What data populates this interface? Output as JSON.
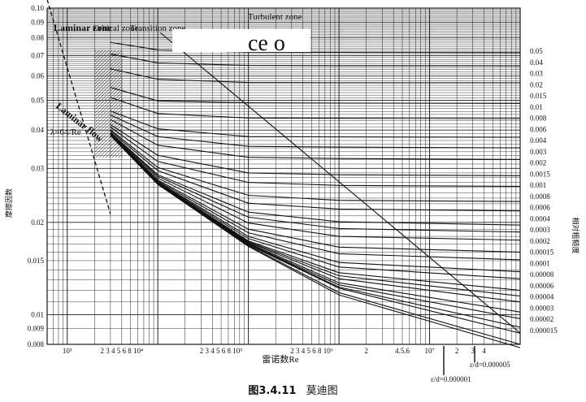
{
  "figure_caption": {
    "number": "图3.4.11",
    "title": "莫迪图"
  },
  "chart_data": {
    "type": "line",
    "title": "",
    "xlabel": "雷诺数Re",
    "ylabel": "摩擦因数",
    "y2label": "相对粗糙度",
    "x_scale": "log",
    "y_scale": "log",
    "xlim": [
      600,
      100000000
    ],
    "ylim": [
      0.008,
      0.1
    ],
    "grid": true,
    "legend": "none",
    "zone_labels": {
      "laminar_zone": "Laminar zone",
      "critical_zone": "Critical zone",
      "transition_zone": "Transition zone",
      "turbulent_zone": "Turbulent zone",
      "laminar_flow": "Laminar flow",
      "laminar_eq": "λ=64/Re",
      "overprint": "ce o"
    },
    "x_tick_labels": [
      "10³",
      "2 3 4 5 6 8 10⁴",
      "2 3 4 5 6 8 10⁵",
      "2 3 4 5 6 8 10⁶",
      "2",
      "4.5.6",
      "10⁷",
      "2",
      "3",
      "4"
    ],
    "y_tick_labels": [
      "0.10",
      "0.09",
      "0.08",
      "0.07",
      "0.06",
      "0.05",
      "0.04",
      "0.03",
      "0.02",
      "0.015",
      "0.01",
      "0.009",
      "0.008"
    ],
    "roughness_labels": [
      "0.05",
      "0.04",
      "0.03",
      "0.02",
      "0.015",
      "0.01",
      "0.008",
      "0.006",
      "0.004",
      "0.003",
      "0.002",
      "0.0015",
      "0.001",
      "0.0008",
      "0.0006",
      "0.0004",
      "0.0003",
      "0.0002",
      "0.00015",
      "0.0001",
      "0.00008",
      "0.00006",
      "0.00004",
      "0.00003",
      "0.00002",
      "0.000015"
    ],
    "bottom_annotations": [
      "ε/d=0.000005",
      "ε/d=0.000001"
    ],
    "laminar_line": {
      "x": [
        600,
        3000
      ],
      "y": [
        0.1067,
        0.0213
      ]
    },
    "series": [
      {
        "name": "ε/d=0.05",
        "x": [
          3000,
          10000,
          100000,
          1000000,
          100000000
        ],
        "y": [
          0.0773,
          0.0731,
          0.0718,
          0.0717,
          0.0716
        ]
      },
      {
        "name": "ε/d=0.04",
        "x": [
          3000,
          10000,
          100000,
          1000000,
          100000000
        ],
        "y": [
          0.0708,
          0.0663,
          0.065,
          0.0649,
          0.0648
        ]
      },
      {
        "name": "ε/d=0.03",
        "x": [
          3000,
          10000,
          100000,
          1000000,
          100000000
        ],
        "y": [
          0.0634,
          0.0586,
          0.0572,
          0.0571,
          0.0571
        ]
      },
      {
        "name": "ε/d=0.02",
        "x": [
          3000,
          10000,
          100000,
          1000000,
          100000000
        ],
        "y": [
          0.0551,
          0.0498,
          0.0491,
          0.049,
          0.0489
        ]
      },
      {
        "name": "ε/d=0.015",
        "x": [
          3000,
          10000,
          100000,
          1000000,
          100000000
        ],
        "y": [
          0.0511,
          0.0453,
          0.0438,
          0.0437,
          0.0436
        ]
      },
      {
        "name": "ε/d=0.01",
        "x": [
          3000,
          10000,
          100000,
          1000000,
          100000000
        ],
        "y": [
          0.0462,
          0.0404,
          0.0381,
          0.038,
          0.0379
        ]
      },
      {
        "name": "ε/d=0.008",
        "x": [
          3000,
          10000,
          100000,
          1000000,
          100000000
        ],
        "y": [
          0.0448,
          0.0381,
          0.0354,
          0.0352,
          0.035
        ]
      },
      {
        "name": "ε/d=0.006",
        "x": [
          3000,
          10000,
          100000,
          1000000,
          100000000
        ],
        "y": [
          0.0433,
          0.0357,
          0.0326,
          0.0323,
          0.0321
        ]
      },
      {
        "name": "ε/d=0.004",
        "x": [
          3000,
          10000,
          100000,
          1000000,
          100000000
        ],
        "y": [
          0.0417,
          0.0331,
          0.029,
          0.0286,
          0.0284
        ]
      },
      {
        "name": "ε/d=0.003",
        "x": [
          3000,
          10000,
          100000,
          1000000,
          100000000
        ],
        "y": [
          0.0409,
          0.0316,
          0.027,
          0.0264,
          0.0262
        ]
      },
      {
        "name": "ε/d=0.002",
        "x": [
          3000,
          10000,
          100000,
          1000000,
          100000000
        ],
        "y": [
          0.0401,
          0.0302,
          0.0245,
          0.0236,
          0.0234
        ]
      },
      {
        "name": "ε/d=0.0015",
        "x": [
          3000,
          10000,
          100000,
          1000000,
          100000000
        ],
        "y": [
          0.0397,
          0.0295,
          0.0231,
          0.0221,
          0.0218
        ]
      },
      {
        "name": "ε/d=0.001",
        "x": [
          3000,
          10000,
          100000,
          1000000,
          100000000
        ],
        "y": [
          0.0393,
          0.0286,
          0.0216,
          0.0201,
          0.0196
        ]
      },
      {
        "name": "ε/d=0.0008",
        "x": [
          3000,
          10000,
          100000,
          1000000,
          100000000
        ],
        "y": [
          0.0391,
          0.0283,
          0.0208,
          0.0191,
          0.0186
        ]
      },
      {
        "name": "ε/d=0.0006",
        "x": [
          3000,
          10000,
          100000,
          1000000,
          100000000
        ],
        "y": [
          0.0389,
          0.0279,
          0.0199,
          0.018,
          0.0175
        ]
      },
      {
        "name": "ε/d=0.0004",
        "x": [
          3000,
          10000,
          100000,
          1000000,
          100000000
        ],
        "y": [
          0.0388,
          0.0275,
          0.019,
          0.0166,
          0.016
        ]
      },
      {
        "name": "ε/d=0.0003",
        "x": [
          3000,
          10000,
          100000,
          1000000,
          100000000
        ],
        "y": [
          0.0387,
          0.0273,
          0.0185,
          0.0158,
          0.0151
        ]
      },
      {
        "name": "ε/d=0.0002",
        "x": [
          3000,
          10000,
          100000,
          1000000,
          100000000
        ],
        "y": [
          0.0386,
          0.0271,
          0.018,
          0.0148,
          0.0138
        ]
      },
      {
        "name": "ε/d=0.00015",
        "x": [
          3000,
          10000,
          100000,
          1000000,
          100000000
        ],
        "y": [
          0.0386,
          0.027,
          0.0177,
          0.0143,
          0.0131
        ]
      },
      {
        "name": "ε/d=0.0001",
        "x": [
          3000,
          10000,
          100000,
          1000000,
          100000000
        ],
        "y": [
          0.0385,
          0.0269,
          0.0174,
          0.0137,
          0.012
        ]
      },
      {
        "name": "ε/d=0.00008",
        "x": [
          3000,
          10000,
          100000,
          1000000,
          100000000
        ],
        "y": [
          0.0385,
          0.0268,
          0.0173,
          0.0134,
          0.0115
        ]
      },
      {
        "name": "ε/d=0.00006",
        "x": [
          3000,
          10000,
          100000,
          1000000,
          100000000
        ],
        "y": [
          0.0385,
          0.0268,
          0.0172,
          0.0131,
          0.011
        ]
      },
      {
        "name": "ε/d=0.00004",
        "x": [
          3000,
          10000,
          100000,
          1000000,
          100000000
        ],
        "y": [
          0.0385,
          0.0267,
          0.0171,
          0.0127,
          0.0102
        ]
      },
      {
        "name": "ε/d=0.00003",
        "x": [
          3000,
          10000,
          100000,
          1000000,
          100000000
        ],
        "y": [
          0.0385,
          0.0267,
          0.017,
          0.0125,
          0.0097
        ]
      },
      {
        "name": "ε/d=0.00002",
        "x": [
          3000,
          10000,
          100000,
          1000000,
          100000000
        ],
        "y": [
          0.0385,
          0.0267,
          0.017,
          0.0123,
          0.0091
        ]
      },
      {
        "name": "ε/d=0.000015",
        "x": [
          3000,
          10000,
          100000,
          1000000,
          100000000
        ],
        "y": [
          0.0385,
          0.0267,
          0.0169,
          0.0122,
          0.0087
        ]
      },
      {
        "name": "ε/d=0.000005",
        "x": [
          3000,
          10000,
          100000,
          1000000,
          100000000
        ],
        "y": [
          0.0384,
          0.0266,
          0.0168,
          0.0118,
          0.008
        ]
      },
      {
        "name": "ε/d=0.000001",
        "x": [
          3000,
          10000,
          100000,
          1000000,
          100000000
        ],
        "y": [
          0.0384,
          0.0266,
          0.0167,
          0.0116,
          0.0078
        ]
      }
    ]
  }
}
